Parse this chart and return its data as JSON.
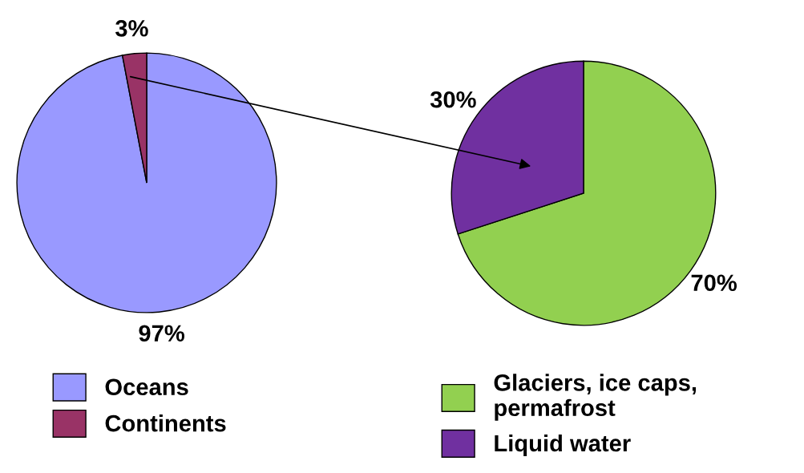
{
  "chart_data": [
    {
      "type": "pie",
      "categories": [
        "Oceans",
        "Continents"
      ],
      "values": [
        97,
        3
      ],
      "value_labels": [
        "97%",
        "3%"
      ],
      "colors": [
        "#9999ff",
        "#993366"
      ],
      "legend": "bottom"
    },
    {
      "type": "pie",
      "categories": [
        "Glaciers, ice caps,\npermafrost",
        "Liquid water"
      ],
      "values": [
        70,
        30
      ],
      "value_labels": [
        "70%",
        "30%"
      ],
      "colors": [
        "#92d050",
        "#7030a0"
      ],
      "legend": "bottom"
    }
  ]
}
